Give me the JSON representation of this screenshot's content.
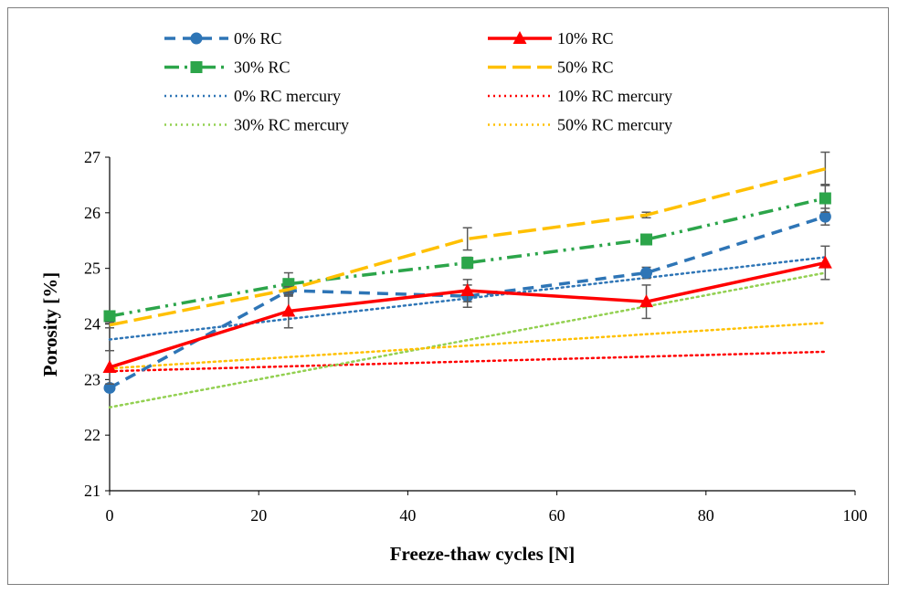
{
  "chart_data": {
    "type": "line",
    "title": "",
    "xlabel": "Freeze-thaw cycles [N]",
    "ylabel": "Porosity [%]",
    "xlim": [
      0,
      100
    ],
    "ylim": [
      21,
      27
    ],
    "x_ticks": [
      "0",
      "20",
      "40",
      "60",
      "80",
      "100"
    ],
    "y_ticks": [
      "21",
      "22",
      "23",
      "24",
      "25",
      "26",
      "27"
    ],
    "grid": false,
    "legend_position": "top",
    "x": [
      0,
      24,
      48,
      72,
      96
    ],
    "series": [
      {
        "name": "0% RC",
        "values": [
          22.85,
          24.6,
          24.5,
          24.92,
          25.93
        ],
        "errors": [
          0.05,
          0.1,
          0.2,
          0.1,
          0.15
        ],
        "color": "#2E75B6",
        "dash": "12,8",
        "marker": "circle"
      },
      {
        "name": "10% RC",
        "values": [
          23.22,
          24.23,
          24.6,
          24.4,
          25.1
        ],
        "errors": [
          0.3,
          0.3,
          0.2,
          0.3,
          0.3
        ],
        "color": "#FF0000",
        "dash": "",
        "marker": "triangle"
      },
      {
        "name": "30% RC",
        "values": [
          24.14,
          24.72,
          25.1,
          25.52,
          26.26
        ],
        "errors": [
          0.05,
          0.2,
          0.1,
          0.05,
          0.25
        ],
        "color": "#2CA54A",
        "dash": "16,6,3,6,3,6",
        "marker": "square"
      },
      {
        "name": "50% RC",
        "values": [
          23.98,
          24.62,
          25.53,
          25.96,
          26.79
        ],
        "errors": [
          0.05,
          0.05,
          0.2,
          0.05,
          0.3
        ],
        "color": "#FFC000",
        "dash": "20,7",
        "marker": "none"
      }
    ],
    "trendlines": [
      {
        "name": "0% RC mercury",
        "x": [
          0,
          96
        ],
        "values": [
          23.72,
          25.2
        ],
        "color": "#2E75B6",
        "dash": "2,4"
      },
      {
        "name": "10% RC mercury",
        "x": [
          0,
          96
        ],
        "values": [
          23.15,
          23.5
        ],
        "color": "#FF0000",
        "dash": "2,4"
      },
      {
        "name": "30% RC mercury",
        "x": [
          0,
          96
        ],
        "values": [
          22.5,
          24.92
        ],
        "color": "#92D050",
        "dash": "2,4"
      },
      {
        "name": "50% RC mercury",
        "x": [
          0,
          96
        ],
        "values": [
          23.2,
          24.02
        ],
        "color": "#FFC000",
        "dash": "2,4"
      }
    ],
    "legend": [
      {
        "label": "0% RC",
        "color": "#2E75B6",
        "dash": "12,8",
        "marker": "circle"
      },
      {
        "label": "10% RC",
        "color": "#FF0000",
        "dash": "",
        "marker": "triangle"
      },
      {
        "label": "30% RC",
        "color": "#2CA54A",
        "dash": "16,6,3,6,3,6",
        "marker": "square"
      },
      {
        "label": "50% RC",
        "color": "#FFC000",
        "dash": "20,7",
        "marker": "none"
      },
      {
        "label": "0% RC mercury",
        "color": "#2E75B6",
        "dash": "2,4",
        "marker": "none"
      },
      {
        "label": "10% RC mercury",
        "color": "#FF0000",
        "dash": "2,4",
        "marker": "none"
      },
      {
        "label": "30% RC mercury",
        "color": "#92D050",
        "dash": "2,4",
        "marker": "none"
      },
      {
        "label": "50% RC mercury",
        "color": "#FFC000",
        "dash": "2,4",
        "marker": "none"
      }
    ]
  }
}
